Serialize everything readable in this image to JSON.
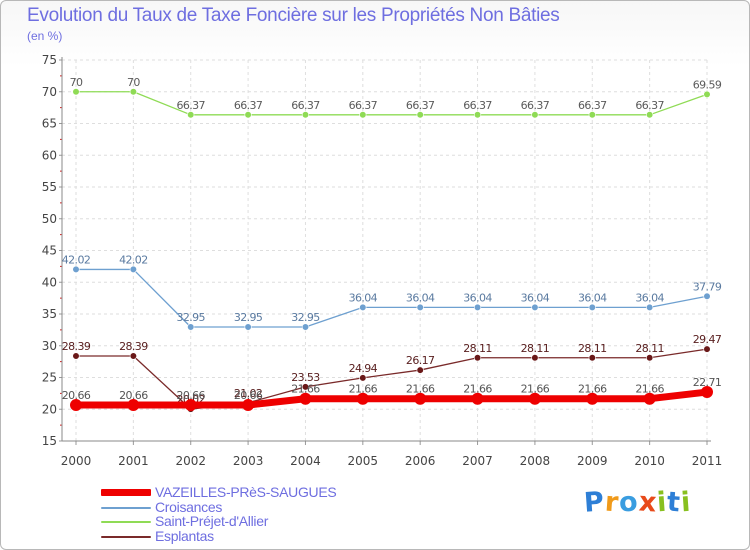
{
  "chart_data": {
    "type": "line",
    "title": "Evolution du Taux de Taxe Foncière sur les Propriétés Non Bâties",
    "subtitle": "(en %)",
    "xlabel": "",
    "ylabel": "(en %)",
    "ylim": [
      15,
      75
    ],
    "yticks": [
      15,
      20,
      25,
      30,
      35,
      40,
      45,
      50,
      55,
      60,
      65,
      70,
      75
    ],
    "grid": true,
    "categories": [
      "2000",
      "2001",
      "2002",
      "2003",
      "2004",
      "2005",
      "2006",
      "2007",
      "2008",
      "2009",
      "2010",
      "2011"
    ],
    "series": [
      {
        "name": "Saint-Préjet-d'Allier",
        "color": "#8fdb55",
        "marker": "#8fdb55",
        "label_color": "#5a5a5a",
        "values": [
          70,
          70,
          66.37,
          66.37,
          66.37,
          66.37,
          66.37,
          66.37,
          66.37,
          66.37,
          66.37,
          69.59
        ],
        "labels": [
          "70",
          "70",
          "66.37",
          "66.37",
          "66.37",
          "66.37",
          "66.37",
          "66.37",
          "66.37",
          "66.37",
          "66.37",
          "69.59"
        ]
      },
      {
        "name": "Croisances",
        "color": "#6ea0d0",
        "marker": "#6ea0d0",
        "label_color": "#5a7aa0",
        "values": [
          42.02,
          42.02,
          32.95,
          32.95,
          32.95,
          36.04,
          36.04,
          36.04,
          36.04,
          36.04,
          36.04,
          37.79
        ],
        "labels": [
          "42.02",
          "42.02",
          "32.95",
          "32.95",
          "32.95",
          "36.04",
          "36.04",
          "36.04",
          "36.04",
          "36.04",
          "36.04",
          "37.79"
        ]
      },
      {
        "name": "Esplantas",
        "color": "#7a2a2a",
        "marker": "#6a1818",
        "label_color": "#5a2020",
        "values": [
          28.39,
          28.39,
          20.02,
          21.02,
          23.53,
          24.94,
          26.17,
          28.11,
          28.11,
          28.11,
          28.11,
          29.47
        ],
        "labels": [
          "28.39",
          "28.39",
          "20.02",
          "21.02",
          "23.53",
          "24.94",
          "26.17",
          "28.11",
          "28.11",
          "28.11",
          "28.11",
          "29.47"
        ]
      },
      {
        "name": "VAZEILLES-PRèS-SAUGUES",
        "color": "#ee0000",
        "marker": "#ee0000",
        "label_color": "#555555",
        "values": [
          20.66,
          20.66,
          20.66,
          20.66,
          21.66,
          21.66,
          21.66,
          21.66,
          21.66,
          21.66,
          21.66,
          22.71
        ],
        "labels": [
          "20.66",
          "20.66",
          "20.66",
          "20.66",
          "21.66",
          "21.66",
          "21.66",
          "21.66",
          "21.66",
          "21.66",
          "21.66",
          "22.71"
        ]
      }
    ],
    "legend_order": [
      "VAZEILLES-PRèS-SAUGUES",
      "Croisances",
      "Saint-Préjet-d'Allier",
      "Esplantas"
    ],
    "legend_position": "bottom-left"
  },
  "logo": {
    "letters": [
      "P",
      "r",
      "o",
      "x",
      "i",
      "t",
      "i"
    ],
    "colors": [
      "#2e7fd6",
      "#f09a1a",
      "#3a9de0",
      "#e84a1a",
      "#88c020",
      "#2e7fd6",
      "#88c020"
    ],
    "alt": "Proxiti"
  }
}
